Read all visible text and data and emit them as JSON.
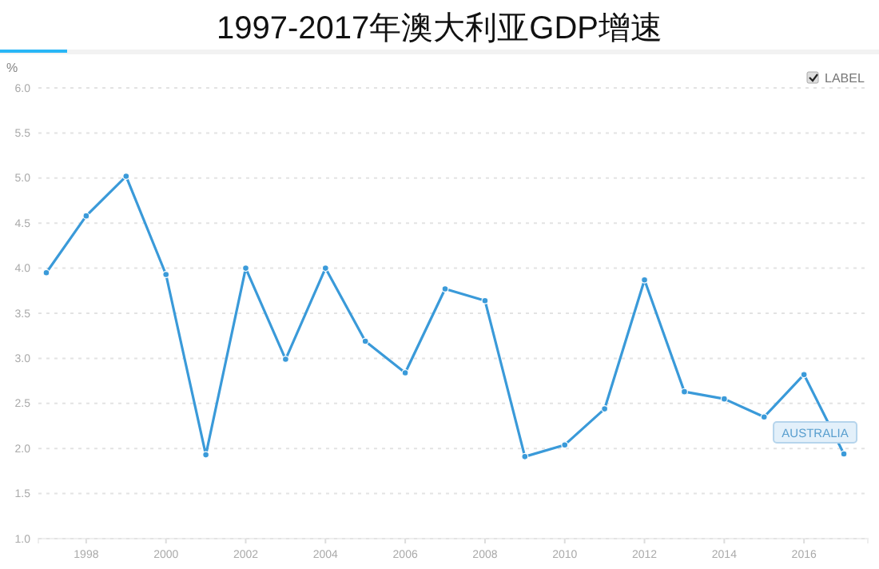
{
  "chart_data": {
    "type": "line",
    "title": "1997-2017年澳大利亚GDP增速",
    "ylabel": "%",
    "x": [
      1997,
      1998,
      1999,
      2000,
      2001,
      2002,
      2003,
      2004,
      2005,
      2006,
      2007,
      2008,
      2009,
      2010,
      2011,
      2012,
      2013,
      2014,
      2015,
      2016,
      2017
    ],
    "series": [
      {
        "name": "AUSTRALIA",
        "color": "#3a9ad9",
        "values": [
          3.95,
          4.58,
          5.02,
          3.93,
          1.93,
          4.0,
          2.99,
          4.0,
          3.19,
          2.84,
          3.77,
          3.64,
          1.91,
          2.04,
          2.44,
          3.87,
          2.63,
          2.55,
          2.35,
          2.82,
          1.94
        ]
      }
    ],
    "xlim": [
      1996.8,
      2017.6
    ],
    "xticks": [
      1998,
      2000,
      2002,
      2004,
      2006,
      2008,
      2010,
      2012,
      2014,
      2016
    ],
    "ylim": [
      1.0,
      6.0
    ],
    "yticks": [
      {
        "value": 1,
        "label": "1.0"
      },
      {
        "value": 1.5,
        "label": "1.5"
      },
      {
        "value": 2,
        "label": "2.0"
      },
      {
        "value": 2.5,
        "label": "2.5"
      },
      {
        "value": 3,
        "label": "3.0"
      },
      {
        "value": 3.5,
        "label": "3.5"
      },
      {
        "value": 4,
        "label": "4.0"
      },
      {
        "value": 4.5,
        "label": "4.5"
      },
      {
        "value": 5,
        "label": "5.0"
      },
      {
        "value": 5.5,
        "label": "5.5"
      },
      {
        "value": 6,
        "label": "6.0"
      }
    ],
    "grid": "y",
    "marker": "circle",
    "line_style": "solid",
    "annotations": [
      "LABEL"
    ]
  }
}
